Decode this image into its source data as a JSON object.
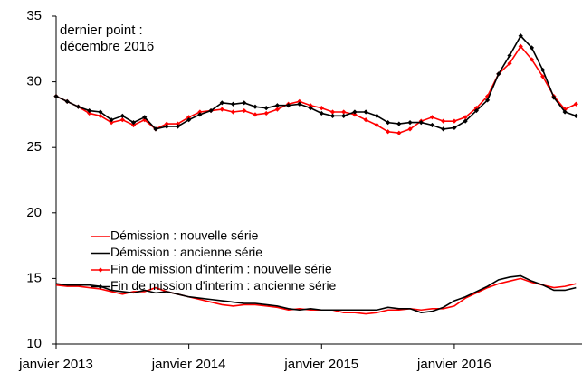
{
  "chart_data": {
    "type": "line",
    "annotation": [
      "dernier point :",
      "décembre 2016"
    ],
    "categories": [
      "janvier 2013",
      null,
      null,
      null,
      null,
      null,
      null,
      null,
      null,
      null,
      null,
      null,
      "janvier 2014",
      null,
      null,
      null,
      null,
      null,
      null,
      null,
      null,
      null,
      null,
      null,
      "janvier 2015",
      null,
      null,
      null,
      null,
      null,
      null,
      null,
      null,
      null,
      null,
      null,
      "janvier 2016",
      null,
      null,
      null,
      null,
      null,
      null,
      null,
      null,
      null,
      null,
      null
    ],
    "ylim": [
      10,
      35
    ],
    "yticks": [
      10,
      15,
      20,
      25,
      30,
      35
    ],
    "legend": "left",
    "series": [
      {
        "name": "Démission : nouvelle série",
        "color": "#ff0000",
        "marker": false,
        "values": [
          14.5,
          14.4,
          14.4,
          14.3,
          14.2,
          14.0,
          13.8,
          14.0,
          14.0,
          14.3,
          14.0,
          13.8,
          13.6,
          13.4,
          13.2,
          13.0,
          12.9,
          13.0,
          13.0,
          12.9,
          12.8,
          12.6,
          12.7,
          12.6,
          12.6,
          12.6,
          12.4,
          12.4,
          12.3,
          12.4,
          12.6,
          12.6,
          12.7,
          12.6,
          12.7,
          12.7,
          12.9,
          13.5,
          13.9,
          14.3,
          14.6,
          14.8,
          15.0,
          14.7,
          14.5,
          14.3,
          14.4,
          14.6
        ]
      },
      {
        "name": "Démission : ancienne série",
        "color": "#000000",
        "marker": false,
        "values": [
          14.6,
          14.5,
          14.5,
          14.5,
          14.4,
          14.1,
          14.0,
          13.9,
          14.1,
          13.9,
          14.0,
          13.8,
          13.6,
          13.5,
          13.4,
          13.3,
          13.2,
          13.1,
          13.1,
          13.0,
          12.9,
          12.7,
          12.6,
          12.7,
          12.6,
          12.6,
          12.6,
          12.6,
          12.6,
          12.6,
          12.8,
          12.7,
          12.7,
          12.4,
          12.5,
          12.8,
          13.3,
          13.6,
          14.0,
          14.4,
          14.9,
          15.1,
          15.2,
          14.8,
          14.5,
          14.1,
          14.1,
          14.3
        ]
      },
      {
        "name": "Fin de mission d'interim : nouvelle série",
        "color": "#ff0000",
        "marker": true,
        "values": [
          28.9,
          28.5,
          28.1,
          27.6,
          27.4,
          26.9,
          27.1,
          26.7,
          27.1,
          26.4,
          26.8,
          26.8,
          27.3,
          27.7,
          27.8,
          27.9,
          27.7,
          27.8,
          27.5,
          27.6,
          27.9,
          28.3,
          28.5,
          28.2,
          28.0,
          27.7,
          27.7,
          27.5,
          27.1,
          26.7,
          26.2,
          26.1,
          26.4,
          27.0,
          27.3,
          27.0,
          27.0,
          27.3,
          28.0,
          28.9,
          30.6,
          31.4,
          32.7,
          31.7,
          30.4,
          28.9,
          27.9,
          28.3
        ]
      },
      {
        "name": "Fin de mission d'interim : ancienne série",
        "color": "#000000",
        "marker": true,
        "values": [
          28.9,
          28.5,
          28.1,
          27.8,
          27.7,
          27.1,
          27.4,
          26.9,
          27.3,
          26.4,
          26.6,
          26.6,
          27.1,
          27.5,
          27.8,
          28.4,
          28.3,
          28.4,
          28.1,
          28.0,
          28.2,
          28.2,
          28.3,
          28.0,
          27.6,
          27.4,
          27.4,
          27.7,
          27.7,
          27.4,
          26.9,
          26.8,
          26.9,
          26.9,
          26.7,
          26.4,
          26.5,
          27.0,
          27.8,
          28.6,
          30.6,
          32.0,
          33.5,
          32.6,
          30.9,
          28.8,
          27.7,
          27.4
        ]
      }
    ]
  }
}
